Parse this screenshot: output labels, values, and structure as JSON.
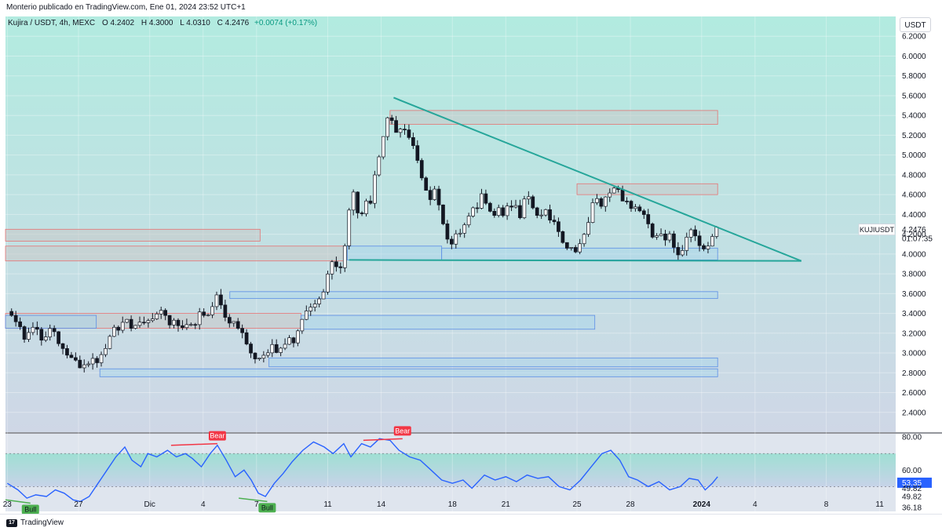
{
  "header": {
    "published": "Monterio publicado en TradingView.com, Ene 01, 2024 23:52 UTC+1"
  },
  "legend": {
    "symbol": "Kujira / USDT, 4h, MEXC",
    "o_label": "O",
    "o_value": "4.2402",
    "h_label": "H",
    "h_value": "4.3000",
    "l_label": "L",
    "l_value": "4.0310",
    "c_label": "C",
    "c_value": "4.2476",
    "change": "+0.0074 (+0.17%)"
  },
  "currency_button": "USDT",
  "price_tag": {
    "symbol": "KUJIUSDT",
    "price": "4.2476",
    "countdown": "01:07:35"
  },
  "rsi_tags": {
    "value": "53.35",
    "upper": "49.82",
    "lower": "49.82",
    "bottom": "36.18"
  },
  "branding": "TradingView",
  "colors": {
    "up": "#ffffff",
    "down": "#131722",
    "trendline": "#26a69a",
    "resistance_fill": "#c8c8c8",
    "resistance_border": "#e57373",
    "support_fill": "#a7d4ea",
    "support_border": "#5b8ee6",
    "rsi_line": "#2962ff",
    "bear": "#f23645",
    "bull": "#4caf50"
  },
  "chart_data": {
    "type": "candlestick",
    "symbol": "KUJIUSDT",
    "timeframe": "4h",
    "exchange": "MEXC",
    "last_price": 4.2476,
    "ylim": [
      2.2,
      6.4
    ],
    "y_ticks": [
      "6.2000",
      "6.0000",
      "5.8000",
      "5.6000",
      "5.4000",
      "5.2000",
      "5.0000",
      "4.8000",
      "4.6000",
      "4.4000",
      "4.2000",
      "4.0000",
      "3.8000",
      "3.6000",
      "3.4000",
      "3.2000",
      "3.0000",
      "2.8000",
      "2.6000",
      "2.4000"
    ],
    "x_ticks": [
      {
        "label": "23",
        "t": 0
      },
      {
        "label": "27",
        "t": 4
      },
      {
        "label": "Dic",
        "t": 8
      },
      {
        "label": "4",
        "t": 11
      },
      {
        "label": "7",
        "t": 14
      },
      {
        "label": "11",
        "t": 18
      },
      {
        "label": "14",
        "t": 21
      },
      {
        "label": "18",
        "t": 25
      },
      {
        "label": "21",
        "t": 28
      },
      {
        "label": "25",
        "t": 32
      },
      {
        "label": "28",
        "t": 35
      },
      {
        "label": "2024",
        "t": 39,
        "bold": true
      },
      {
        "label": "4",
        "t": 42
      },
      {
        "label": "8",
        "t": 46
      },
      {
        "label": "11",
        "t": 49
      }
    ],
    "x_domain": [
      -0.1,
      49.9
    ],
    "close_path": [
      [
        0.0,
        3.42
      ],
      [
        0.3,
        3.3
      ],
      [
        0.6,
        3.32
      ],
      [
        0.9,
        3.1
      ],
      [
        1.2,
        3.18
      ],
      [
        1.6,
        3.25
      ],
      [
        2.0,
        3.15
      ],
      [
        2.4,
        3.25
      ],
      [
        2.7,
        3.22
      ],
      [
        3.1,
        3.05
      ],
      [
        3.4,
        2.98
      ],
      [
        3.7,
        2.9
      ],
      [
        4.1,
        2.82
      ],
      [
        4.4,
        2.85
      ],
      [
        4.8,
        2.9
      ],
      [
        5.1,
        2.86
      ],
      [
        5.4,
        3.0
      ],
      [
        5.7,
        3.2
      ],
      [
        6.0,
        3.3
      ],
      [
        6.3,
        3.25
      ],
      [
        6.6,
        3.45
      ],
      [
        6.9,
        3.3
      ],
      [
        7.2,
        3.22
      ],
      [
        7.5,
        3.28
      ],
      [
        7.9,
        3.3
      ],
      [
        8.3,
        3.35
      ],
      [
        8.6,
        3.38
      ],
      [
        9.0,
        3.3
      ],
      [
        9.4,
        3.35
      ],
      [
        9.8,
        3.25
      ],
      [
        10.2,
        3.35
      ],
      [
        10.6,
        3.3
      ],
      [
        10.9,
        3.4
      ],
      [
        11.2,
        3.32
      ],
      [
        11.5,
        3.45
      ],
      [
        11.8,
        3.6
      ],
      [
        12.1,
        3.4
      ],
      [
        12.4,
        3.3
      ],
      [
        12.7,
        3.35
      ],
      [
        13.1,
        3.25
      ],
      [
        13.5,
        3.1
      ],
      [
        13.9,
        2.98
      ],
      [
        14.2,
        3.0
      ],
      [
        14.5,
        2.95
      ],
      [
        14.8,
        3.05
      ],
      [
        15.1,
        3.0
      ],
      [
        15.4,
        3.05
      ],
      [
        15.7,
        3.1
      ],
      [
        16.1,
        3.15
      ],
      [
        16.4,
        3.3
      ],
      [
        16.7,
        3.45
      ],
      [
        17.1,
        3.5
      ],
      [
        17.5,
        3.6
      ],
      [
        17.9,
        3.7
      ],
      [
        18.3,
        3.95
      ],
      [
        18.6,
        3.75
      ],
      [
        18.9,
        4.0
      ],
      [
        19.2,
        4.4
      ],
      [
        19.5,
        4.65
      ],
      [
        19.8,
        4.35
      ],
      [
        20.1,
        4.6
      ],
      [
        20.4,
        4.55
      ],
      [
        20.7,
        4.9
      ],
      [
        21.0,
        5.1
      ],
      [
        21.3,
        5.4
      ],
      [
        21.6,
        5.3
      ],
      [
        21.9,
        5.2
      ],
      [
        22.2,
        5.25
      ],
      [
        22.5,
        5.15
      ],
      [
        22.8,
        5.05
      ],
      [
        23.1,
        4.85
      ],
      [
        23.4,
        4.8
      ],
      [
        23.7,
        4.55
      ],
      [
        24.0,
        4.7
      ],
      [
        24.3,
        4.45
      ],
      [
        24.6,
        4.3
      ],
      [
        24.9,
        4.05
      ],
      [
        25.2,
        4.15
      ],
      [
        25.5,
        4.2
      ],
      [
        25.8,
        4.3
      ],
      [
        26.1,
        4.4
      ],
      [
        26.4,
        4.45
      ],
      [
        26.7,
        4.6
      ],
      [
        27.0,
        4.55
      ],
      [
        27.3,
        4.4
      ],
      [
        27.6,
        4.5
      ],
      [
        27.9,
        4.4
      ],
      [
        28.2,
        4.55
      ],
      [
        28.5,
        4.45
      ],
      [
        28.8,
        4.35
      ],
      [
        29.1,
        4.55
      ],
      [
        29.4,
        4.5
      ],
      [
        29.7,
        4.4
      ],
      [
        30.0,
        4.35
      ],
      [
        30.3,
        4.45
      ],
      [
        30.6,
        4.35
      ],
      [
        30.9,
        4.3
      ],
      [
        31.2,
        4.15
      ],
      [
        31.5,
        4.05
      ],
      [
        31.8,
        4.1
      ],
      [
        32.1,
        4.05
      ],
      [
        32.4,
        4.15
      ],
      [
        32.7,
        4.35
      ],
      [
        33.0,
        4.55
      ],
      [
        33.3,
        4.45
      ],
      [
        33.6,
        4.55
      ],
      [
        33.9,
        4.65
      ],
      [
        34.2,
        4.7
      ],
      [
        34.5,
        4.6
      ],
      [
        34.8,
        4.55
      ],
      [
        35.1,
        4.45
      ],
      [
        35.4,
        4.5
      ],
      [
        35.7,
        4.4
      ],
      [
        36.0,
        4.25
      ],
      [
        36.3,
        4.15
      ],
      [
        36.6,
        4.2
      ],
      [
        36.9,
        4.1
      ],
      [
        37.2,
        4.15
      ],
      [
        37.5,
        4.05
      ],
      [
        37.8,
        4.0
      ],
      [
        38.1,
        4.2
      ],
      [
        38.4,
        4.25
      ],
      [
        38.7,
        4.2
      ],
      [
        39.0,
        4.1
      ],
      [
        39.3,
        4.05
      ],
      [
        39.6,
        4.15
      ],
      [
        39.9,
        4.25
      ]
    ],
    "zones": [
      {
        "kind": "resistance",
        "t1": -0.1,
        "t2": 14.2,
        "top": 4.25,
        "bottom": 4.13
      },
      {
        "kind": "resistance",
        "t1": -0.1,
        "t2": 19.0,
        "top": 4.08,
        "bottom": 3.93
      },
      {
        "kind": "resistance",
        "t1": 21.5,
        "t2": 39.9,
        "top": 5.45,
        "bottom": 5.31
      },
      {
        "kind": "resistance",
        "t1": 32.0,
        "t2": 39.9,
        "top": 4.71,
        "bottom": 4.6
      },
      {
        "kind": "resistance",
        "t1": -0.1,
        "t2": 16.5,
        "top": 3.4,
        "bottom": 3.25
      },
      {
        "kind": "support",
        "t1": 19.1,
        "t2": 24.4,
        "top": 4.08,
        "bottom": 3.94
      },
      {
        "kind": "support",
        "t1": 24.4,
        "t2": 39.9,
        "top": 4.06,
        "bottom": 3.94
      },
      {
        "kind": "support",
        "t1": 12.5,
        "t2": 39.9,
        "top": 3.62,
        "bottom": 3.55
      },
      {
        "kind": "support",
        "t1": 16.5,
        "t2": 33.0,
        "top": 3.38,
        "bottom": 3.24
      },
      {
        "kind": "support",
        "t1": 14.7,
        "t2": 39.9,
        "top": 2.95,
        "bottom": 2.86
      },
      {
        "kind": "support",
        "t1": 5.2,
        "t2": 39.9,
        "top": 2.84,
        "bottom": 2.76
      },
      {
        "kind": "support",
        "t1": -0.1,
        "t2": 5.0,
        "top": 3.38,
        "bottom": 3.25
      }
    ],
    "trendlines": [
      {
        "t1": 21.7,
        "v1": 5.58,
        "t2": 44.6,
        "v2": 3.93
      },
      {
        "t1": 19.2,
        "v1": 3.94,
        "t2": 44.6,
        "v2": 3.93
      }
    ],
    "rsi": {
      "ylim": [
        35,
        82
      ],
      "levels": [
        70,
        50
      ],
      "ticks": [
        "80.00",
        "60.00"
      ],
      "values": [
        [
          0.0,
          52
        ],
        [
          0.6,
          48
        ],
        [
          1.1,
          43
        ],
        [
          1.6,
          45
        ],
        [
          2.2,
          44
        ],
        [
          2.7,
          48
        ],
        [
          3.2,
          46
        ],
        [
          3.7,
          42
        ],
        [
          4.1,
          41
        ],
        [
          4.6,
          44
        ],
        [
          5.1,
          52
        ],
        [
          5.6,
          60
        ],
        [
          6.1,
          68
        ],
        [
          6.6,
          74
        ],
        [
          7.0,
          66
        ],
        [
          7.5,
          62
        ],
        [
          7.9,
          70
        ],
        [
          8.4,
          68
        ],
        [
          9.0,
          72
        ],
        [
          9.5,
          68
        ],
        [
          10.0,
          70
        ],
        [
          10.4,
          67
        ],
        [
          10.9,
          62
        ],
        [
          11.4,
          70
        ],
        [
          11.8,
          75
        ],
        [
          12.3,
          66
        ],
        [
          12.8,
          56
        ],
        [
          13.3,
          60
        ],
        [
          13.7,
          54
        ],
        [
          14.1,
          46
        ],
        [
          14.5,
          44
        ],
        [
          15.0,
          52
        ],
        [
          15.5,
          58
        ],
        [
          16.0,
          65
        ],
        [
          16.6,
          72
        ],
        [
          17.2,
          77
        ],
        [
          17.8,
          74
        ],
        [
          18.3,
          70
        ],
        [
          18.9,
          76
        ],
        [
          19.3,
          68
        ],
        [
          19.9,
          76
        ],
        [
          20.4,
          74
        ],
        [
          20.9,
          79
        ],
        [
          21.5,
          78
        ],
        [
          22.0,
          72
        ],
        [
          22.6,
          68
        ],
        [
          23.2,
          66
        ],
        [
          23.8,
          60
        ],
        [
          24.4,
          54
        ],
        [
          25.0,
          52
        ],
        [
          25.6,
          54
        ],
        [
          26.1,
          49
        ],
        [
          26.8,
          57
        ],
        [
          27.4,
          54
        ],
        [
          28.0,
          56
        ],
        [
          28.6,
          53
        ],
        [
          29.2,
          57
        ],
        [
          29.8,
          55
        ],
        [
          30.4,
          56
        ],
        [
          31.0,
          50
        ],
        [
          31.6,
          48
        ],
        [
          32.2,
          54
        ],
        [
          32.8,
          62
        ],
        [
          33.4,
          70
        ],
        [
          33.9,
          72
        ],
        [
          34.4,
          66
        ],
        [
          34.9,
          56
        ],
        [
          35.4,
          54
        ],
        [
          36.0,
          50
        ],
        [
          36.6,
          53
        ],
        [
          37.2,
          48
        ],
        [
          37.8,
          50
        ],
        [
          38.3,
          55
        ],
        [
          38.8,
          54
        ],
        [
          39.2,
          48
        ],
        [
          39.6,
          52
        ],
        [
          39.9,
          56
        ]
      ],
      "divergences": [
        {
          "kind": "bear",
          "t1": 9.2,
          "v1": 75,
          "t2": 11.8,
          "v2": 76
        },
        {
          "kind": "bear",
          "t1": 20.0,
          "v1": 78,
          "t2": 22.2,
          "v2": 79
        },
        {
          "kind": "bull",
          "t1": -0.1,
          "v1": 42,
          "t2": 1.3,
          "v2": 40
        },
        {
          "kind": "bull",
          "t1": 13.0,
          "v1": 43,
          "t2": 14.6,
          "v2": 41
        }
      ],
      "bear_label": "Bear",
      "bull_label": "Bull"
    }
  }
}
